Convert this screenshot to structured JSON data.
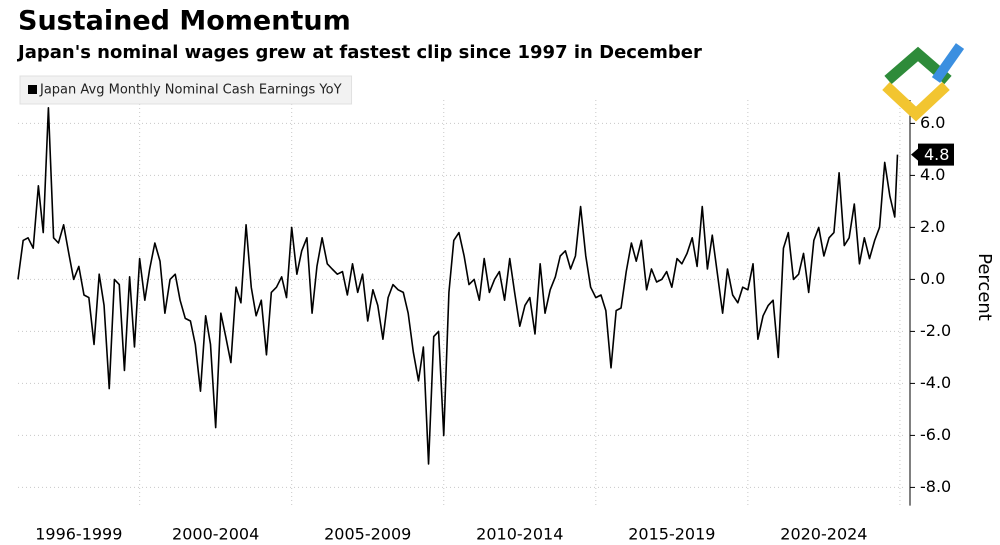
{
  "chart_data": {
    "type": "line",
    "title": "Sustained Momentum",
    "subtitle": "Japan's nominal wages grew at fastest clip since 1997 in December",
    "ylabel": "Percent",
    "grid": true,
    "legend": "upper left",
    "xlim": [
      1996,
      2025.2
    ],
    "xgrid": [
      2000,
      2005,
      2010,
      2015,
      2020,
      2025
    ],
    "xticks": [
      {
        "value": 1998,
        "label": "1996-1999"
      },
      {
        "value": 2002.5,
        "label": "2000-2004"
      },
      {
        "value": 2007.5,
        "label": "2005-2009"
      },
      {
        "value": 2012.5,
        "label": "2010-2014"
      },
      {
        "value": 2017.5,
        "label": "2015-2019"
      },
      {
        "value": 2022.5,
        "label": "2020-2024"
      }
    ],
    "ylim": [
      -8.7,
      6.9
    ],
    "yticks": [
      {
        "value": -8,
        "label": "-8.0"
      },
      {
        "value": -6,
        "label": "-6.0"
      },
      {
        "value": -4,
        "label": "-4.0"
      },
      {
        "value": -2,
        "label": "-2.0"
      },
      {
        "value": 0,
        "label": "0.0"
      },
      {
        "value": 2,
        "label": "2.0"
      },
      {
        "value": 4,
        "label": "4.0"
      },
      {
        "value": 6,
        "label": "6.0"
      }
    ],
    "x": [
      1996,
      1996.17,
      1996.33,
      1996.5,
      1996.67,
      1996.83,
      1997,
      1997.17,
      1997.33,
      1997.5,
      1997.67,
      1997.83,
      1998,
      1998.17,
      1998.33,
      1998.5,
      1998.67,
      1998.83,
      1999,
      1999.17,
      1999.33,
      1999.5,
      1999.67,
      1999.83,
      2000,
      2000.17,
      2000.33,
      2000.5,
      2000.67,
      2000.83,
      2001,
      2001.17,
      2001.33,
      2001.5,
      2001.67,
      2001.83,
      2002,
      2002.17,
      2002.33,
      2002.5,
      2002.67,
      2002.83,
      2003,
      2003.17,
      2003.33,
      2003.5,
      2003.67,
      2003.83,
      2004,
      2004.17,
      2004.33,
      2004.5,
      2004.67,
      2004.83,
      2005,
      2005.17,
      2005.33,
      2005.5,
      2005.67,
      2005.83,
      2006,
      2006.17,
      2006.33,
      2006.5,
      2006.67,
      2006.83,
      2007,
      2007.17,
      2007.33,
      2007.5,
      2007.67,
      2007.83,
      2008,
      2008.17,
      2008.33,
      2008.5,
      2008.67,
      2008.83,
      2009,
      2009.17,
      2009.33,
      2009.5,
      2009.67,
      2009.83,
      2010,
      2010.17,
      2010.33,
      2010.5,
      2010.67,
      2010.83,
      2011,
      2011.17,
      2011.33,
      2011.5,
      2011.67,
      2011.83,
      2012,
      2012.17,
      2012.33,
      2012.5,
      2012.67,
      2012.83,
      2013,
      2013.17,
      2013.33,
      2013.5,
      2013.67,
      2013.83,
      2014,
      2014.17,
      2014.33,
      2014.5,
      2014.67,
      2014.83,
      2015,
      2015.17,
      2015.33,
      2015.5,
      2015.67,
      2015.83,
      2016,
      2016.17,
      2016.33,
      2016.5,
      2016.67,
      2016.83,
      2017,
      2017.17,
      2017.33,
      2017.5,
      2017.67,
      2017.83,
      2018,
      2018.17,
      2018.33,
      2018.5,
      2018.67,
      2018.83,
      2019,
      2019.17,
      2019.33,
      2019.5,
      2019.67,
      2019.83,
      2020,
      2020.17,
      2020.33,
      2020.5,
      2020.67,
      2020.83,
      2021,
      2021.17,
      2021.33,
      2021.5,
      2021.67,
      2021.83,
      2022,
      2022.17,
      2022.33,
      2022.5,
      2022.67,
      2022.83,
      2023,
      2023.17,
      2023.33,
      2023.5,
      2023.67,
      2023.83,
      2024,
      2024.17,
      2024.33,
      2024.5,
      2024.67,
      2024.83,
      2024.92
    ],
    "series": [
      {
        "name": "Japan Avg Monthly Nominal Cash Earnings YoY",
        "color": "#000000",
        "values": [
          0.0,
          1.5,
          1.6,
          1.2,
          3.6,
          1.8,
          6.6,
          1.6,
          1.4,
          2.1,
          1.0,
          0.0,
          0.5,
          -0.6,
          -0.7,
          -2.5,
          0.2,
          -1.0,
          -4.2,
          0.0,
          -0.2,
          -3.5,
          0.1,
          -2.6,
          0.8,
          -0.8,
          0.4,
          1.4,
          0.7,
          -1.3,
          0.0,
          0.2,
          -0.8,
          -1.5,
          -1.6,
          -2.5,
          -4.3,
          -1.4,
          -2.5,
          -5.7,
          -1.3,
          -2.2,
          -3.2,
          -0.3,
          -0.9,
          2.1,
          -0.3,
          -1.4,
          -0.8,
          -2.9,
          -0.5,
          -0.3,
          0.1,
          -0.7,
          2.0,
          0.2,
          1.1,
          1.6,
          -1.3,
          0.5,
          1.6,
          0.6,
          0.4,
          0.2,
          0.3,
          -0.6,
          0.6,
          -0.5,
          0.2,
          -1.6,
          -0.4,
          -1.0,
          -2.3,
          -0.7,
          -0.2,
          -0.4,
          -0.5,
          -1.3,
          -2.8,
          -3.9,
          -2.6,
          -7.1,
          -2.2,
          -2.0,
          -6.0,
          -0.5,
          1.5,
          1.8,
          0.9,
          -0.2,
          0.0,
          -0.8,
          0.8,
          -0.5,
          0.0,
          0.3,
          -0.8,
          0.8,
          -0.5,
          -1.8,
          -1.0,
          -0.7,
          -2.1,
          0.6,
          -1.3,
          -0.4,
          0.1,
          0.9,
          1.1,
          0.4,
          0.9,
          2.8,
          0.9,
          -0.3,
          -0.7,
          -0.6,
          -1.2,
          -3.4,
          -1.2,
          -1.1,
          0.3,
          1.4,
          0.7,
          1.5,
          -0.4,
          0.4,
          -0.1,
          0.0,
          0.3,
          -0.3,
          0.8,
          0.6,
          1.0,
          1.6,
          0.5,
          2.8,
          0.4,
          1.7,
          0.2,
          -1.3,
          0.4,
          -0.6,
          -0.9,
          -0.3,
          -0.4,
          0.6,
          -2.3,
          -1.4,
          -1.0,
          -0.8,
          -3.0,
          1.2,
          1.8,
          0.0,
          0.2,
          1.0,
          -0.5,
          1.5,
          2.0,
          0.9,
          1.6,
          1.8,
          4.1,
          1.3,
          1.6,
          2.9,
          0.6,
          1.6,
          0.8,
          1.5,
          2.0,
          4.5,
          3.2,
          2.4,
          4.8
        ]
      }
    ]
  }
}
